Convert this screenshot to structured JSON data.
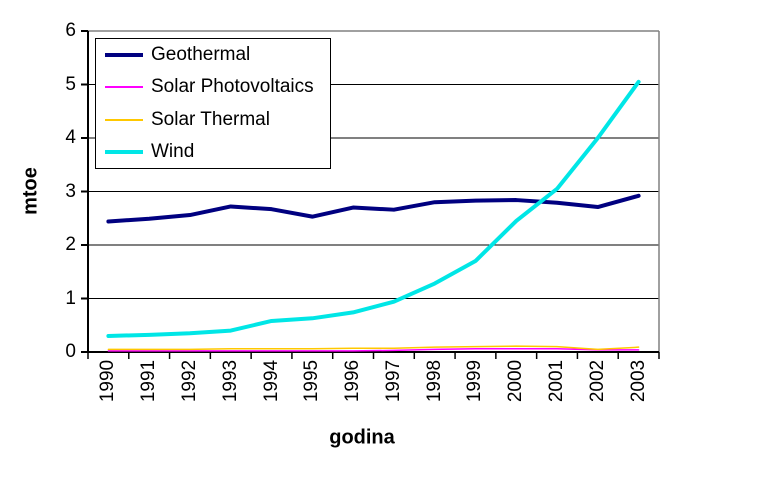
{
  "chart_data": {
    "type": "line",
    "x": [
      "1990",
      "1991",
      "1992",
      "1993",
      "1994",
      "1995",
      "1996",
      "1997",
      "1998",
      "1999",
      "2000",
      "2001",
      "2002",
      "2003"
    ],
    "series": [
      {
        "name": "Geothermal",
        "color": "#000080",
        "width": 4,
        "values": [
          2.44,
          2.49,
          2.56,
          2.72,
          2.67,
          2.53,
          2.7,
          2.66,
          2.8,
          2.83,
          2.84,
          2.79,
          2.71,
          2.92
        ]
      },
      {
        "name": "Solar Photovoltaics",
        "color": "#FF00FF",
        "width": 1.5,
        "values": [
          0.02,
          0.02,
          0.02,
          0.02,
          0.02,
          0.02,
          0.02,
          0.03,
          0.05,
          0.06,
          0.06,
          0.06,
          0.04,
          0.04
        ]
      },
      {
        "name": "Solar Thermal",
        "color": "#FFC800",
        "width": 1.5,
        "values": [
          0.05,
          0.05,
          0.05,
          0.06,
          0.06,
          0.06,
          0.07,
          0.07,
          0.09,
          0.1,
          0.11,
          0.1,
          0.05,
          0.09
        ]
      },
      {
        "name": "Wind",
        "color": "#00E6E6",
        "width": 4,
        "values": [
          0.3,
          0.32,
          0.35,
          0.4,
          0.58,
          0.63,
          0.74,
          0.94,
          1.28,
          1.7,
          2.45,
          3.05,
          4.0,
          5.05
        ]
      }
    ],
    "title": "",
    "xlabel": "godina",
    "ylabel": "mtoe",
    "ylim": [
      0,
      6
    ],
    "yticks": [
      0,
      1,
      2,
      3,
      4,
      5,
      6
    ],
    "grid": true,
    "legend_position": "top-left",
    "colors": {
      "gridline": "#000000",
      "plot_border": "#808080",
      "axis": "#000000",
      "background": "#ffffff"
    }
  }
}
